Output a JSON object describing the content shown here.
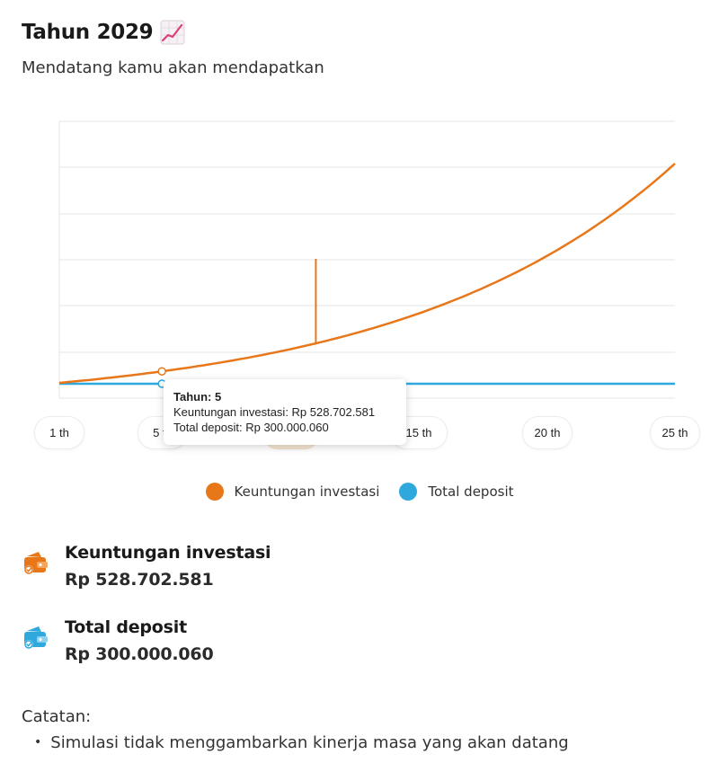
{
  "header": {
    "title": "Tahun 2029",
    "subtitle": "Mendatang kamu akan mendapatkan"
  },
  "chart_data": {
    "type": "line",
    "x": [
      1,
      5,
      10,
      15,
      20,
      25
    ],
    "x_tick_labels": [
      "1 th",
      "5 th",
      "10 th",
      "15 th",
      "20 th",
      "25 th"
    ],
    "series": [
      {
        "name": "Keuntungan investasi",
        "color": "#e8771a",
        "growth_rate": 0.1
      },
      {
        "name": "Total deposit",
        "color": "#2fa8dd",
        "flat": true
      }
    ],
    "selected": {
      "x_index": 1,
      "year": 5
    },
    "grid": true,
    "legend_position": "bottom"
  },
  "tooltip": {
    "title": "Tahun: 5",
    "line1": "Keuntungan investasi: Rp 528.702.581",
    "line2": "Total deposit: Rp 300.000.060"
  },
  "legend": {
    "item1": "Keuntungan investasi",
    "item2": "Total deposit"
  },
  "stats": {
    "profit_label": "Keuntungan investasi",
    "profit_value": "Rp 528.702.581",
    "deposit_label": "Total deposit",
    "deposit_value": "Rp 300.000.060"
  },
  "notes": {
    "title": "Catatan:",
    "items": [
      "Simulasi tidak menggambarkan kinerja masa yang akan datang"
    ]
  },
  "colors": {
    "orange": "#e8771a",
    "blue": "#2fa8dd",
    "title_icon": "#d9407a"
  },
  "icons": {
    "title": "chart-increasing-icon",
    "profit": "wallet-icon",
    "deposit": "wallet-icon"
  }
}
